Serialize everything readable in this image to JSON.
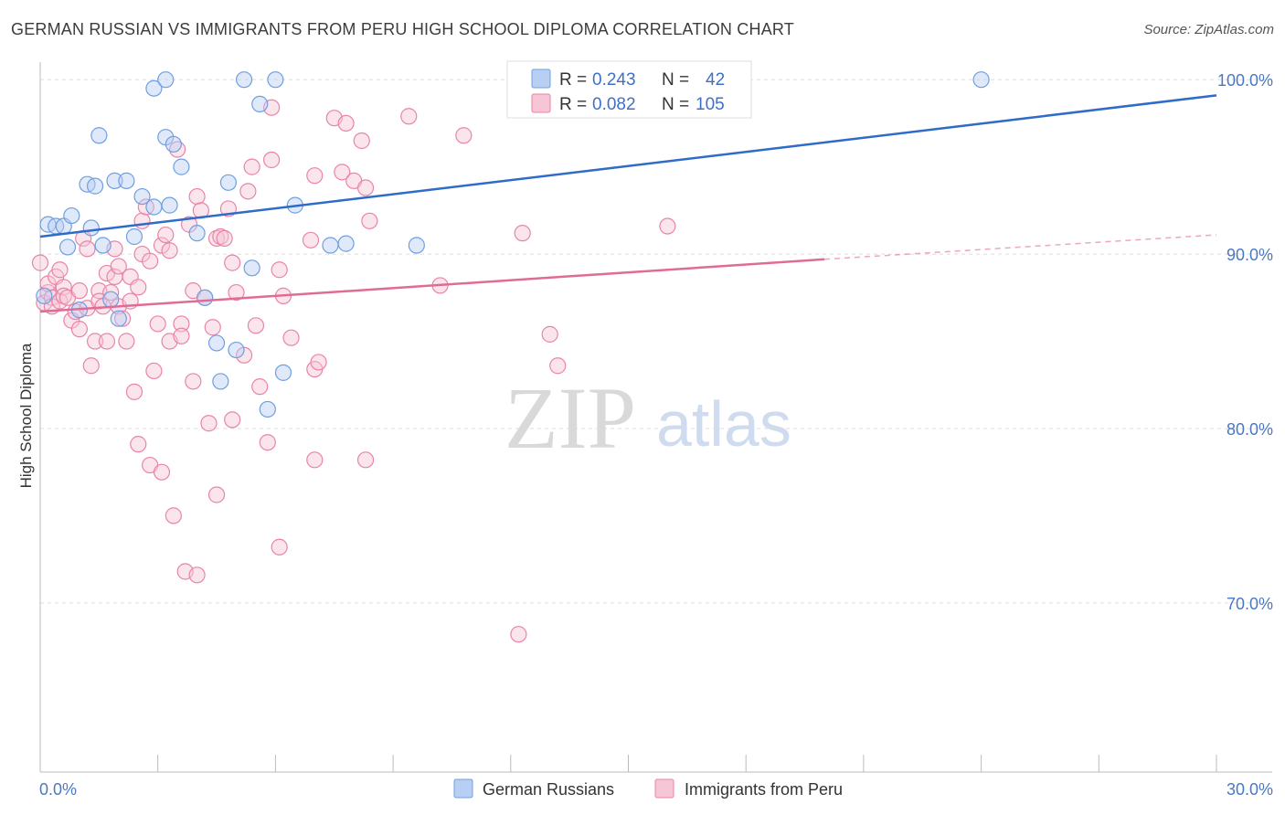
{
  "title": "GERMAN RUSSIAN VS IMMIGRANTS FROM PERU HIGH SCHOOL DIPLOMA CORRELATION CHART",
  "source": "Source: ZipAtlas.com",
  "watermark": {
    "zip": "ZIP",
    "atlas": "atlas"
  },
  "legend_top": {
    "rows": [
      {
        "r_label": "R =",
        "r_value": "0.243",
        "n_label": "N =",
        "n_value": "42"
      },
      {
        "r_label": "R =",
        "r_value": "0.082",
        "n_label": "N =",
        "n_value": "105"
      }
    ]
  },
  "legend_bottom": [
    "German Russians",
    "Immigrants from Peru"
  ],
  "chart_data": {
    "type": "scatter",
    "title": "GERMAN RUSSIAN VS IMMIGRANTS FROM PERU HIGH SCHOOL DIPLOMA CORRELATION CHART",
    "xlabel": "",
    "ylabel": "High School Diploma",
    "xlim": [
      0,
      30
    ],
    "ylim": [
      60.3,
      100.9
    ],
    "x_tick_labels": [
      {
        "value": 0,
        "label": "0.0%"
      },
      {
        "value": 30,
        "label": "30.0%"
      }
    ],
    "y_tick_labels": [
      {
        "value": 100,
        "label": "100.0%"
      },
      {
        "value": 90,
        "label": "90.0%"
      },
      {
        "value": 80,
        "label": "80.0%"
      },
      {
        "value": 70,
        "label": "70.0%"
      }
    ],
    "grid": true,
    "legend": "top-center",
    "colors": {
      "blue": "#6f9fe0",
      "blue_fill": "#b7cff3",
      "pink": "#ea84a6",
      "pink_fill": "#f6c6d6",
      "blue_line": "#2f6bc8",
      "pink_line": "#e06c96"
    },
    "series": [
      {
        "name": "German Russians",
        "color": "blue",
        "R": 0.243,
        "N": 42,
        "trend": {
          "x0": 0,
          "y0": 91.0,
          "x1": 30,
          "y1": 99.1
        },
        "points": [
          [
            0.2,
            91.7
          ],
          [
            0.4,
            91.6
          ],
          [
            0.6,
            91.6
          ],
          [
            0.7,
            90.4
          ],
          [
            0.8,
            92.2
          ],
          [
            1.0,
            86.8
          ],
          [
            1.2,
            94.0
          ],
          [
            1.3,
            91.5
          ],
          [
            1.4,
            93.9
          ],
          [
            1.5,
            96.8
          ],
          [
            1.6,
            90.5
          ],
          [
            1.8,
            87.4
          ],
          [
            1.9,
            94.2
          ],
          [
            2.0,
            86.3
          ],
          [
            2.2,
            94.2
          ],
          [
            2.4,
            91.0
          ],
          [
            2.6,
            93.3
          ],
          [
            2.9,
            92.7
          ],
          [
            2.9,
            99.5
          ],
          [
            3.2,
            100.0
          ],
          [
            3.2,
            96.7
          ],
          [
            3.4,
            96.3
          ],
          [
            3.6,
            95.0
          ],
          [
            4.0,
            91.2
          ],
          [
            4.2,
            87.5
          ],
          [
            4.5,
            84.9
          ],
          [
            4.6,
            82.7
          ],
          [
            4.8,
            94.1
          ],
          [
            5.0,
            84.5
          ],
          [
            5.2,
            100.0
          ],
          [
            5.4,
            89.2
          ],
          [
            5.6,
            98.6
          ],
          [
            5.8,
            81.1
          ],
          [
            6.0,
            100.0
          ],
          [
            6.2,
            83.2
          ],
          [
            6.5,
            92.8
          ],
          [
            7.4,
            90.5
          ],
          [
            7.8,
            90.6
          ],
          [
            9.6,
            90.5
          ],
          [
            24.0,
            100.0
          ],
          [
            0.1,
            87.6
          ],
          [
            3.3,
            92.8
          ]
        ]
      },
      {
        "name": "Immigrants from Peru",
        "color": "pink",
        "R": 0.082,
        "N": 105,
        "trend": {
          "x0": 0,
          "y0": 86.7,
          "x1": 20.0,
          "y1": 89.7,
          "dash_x1": 30,
          "dash_y1": 91.1
        },
        "points": [
          [
            0.0,
            89.5
          ],
          [
            0.1,
            87.2
          ],
          [
            0.2,
            87.8
          ],
          [
            0.2,
            88.3
          ],
          [
            0.3,
            87.5
          ],
          [
            0.3,
            87.0
          ],
          [
            0.4,
            88.7
          ],
          [
            0.5,
            87.3
          ],
          [
            0.5,
            89.1
          ],
          [
            0.6,
            88.1
          ],
          [
            0.6,
            87.6
          ],
          [
            0.7,
            87.5
          ],
          [
            0.8,
            86.2
          ],
          [
            0.9,
            86.7
          ],
          [
            1.0,
            87.9
          ],
          [
            1.0,
            85.7
          ],
          [
            1.1,
            90.9
          ],
          [
            1.2,
            86.9
          ],
          [
            1.2,
            90.3
          ],
          [
            1.3,
            83.6
          ],
          [
            1.4,
            85.0
          ],
          [
            1.5,
            87.9
          ],
          [
            1.5,
            87.3
          ],
          [
            1.6,
            87.0
          ],
          [
            1.7,
            88.9
          ],
          [
            1.7,
            85.0
          ],
          [
            1.8,
            87.8
          ],
          [
            1.9,
            88.7
          ],
          [
            1.9,
            90.3
          ],
          [
            2.0,
            87.0
          ],
          [
            2.0,
            89.3
          ],
          [
            2.1,
            86.3
          ],
          [
            2.2,
            85.0
          ],
          [
            2.3,
            88.7
          ],
          [
            2.4,
            82.1
          ],
          [
            2.5,
            88.1
          ],
          [
            2.5,
            79.1
          ],
          [
            2.6,
            91.9
          ],
          [
            2.6,
            90.0
          ],
          [
            2.7,
            92.7
          ],
          [
            2.8,
            77.9
          ],
          [
            2.8,
            89.6
          ],
          [
            2.9,
            83.3
          ],
          [
            3.0,
            86.0
          ],
          [
            3.1,
            77.5
          ],
          [
            3.1,
            90.5
          ],
          [
            3.2,
            91.1
          ],
          [
            3.3,
            85.0
          ],
          [
            3.3,
            90.2
          ],
          [
            3.4,
            75.0
          ],
          [
            3.5,
            96.0
          ],
          [
            3.6,
            86.0
          ],
          [
            3.6,
            85.3
          ],
          [
            3.7,
            71.8
          ],
          [
            3.8,
            91.7
          ],
          [
            3.9,
            87.9
          ],
          [
            3.9,
            82.7
          ],
          [
            4.0,
            93.3
          ],
          [
            4.0,
            71.6
          ],
          [
            4.1,
            92.5
          ],
          [
            4.2,
            87.5
          ],
          [
            4.3,
            80.3
          ],
          [
            4.4,
            85.8
          ],
          [
            4.5,
            90.9
          ],
          [
            4.5,
            76.2
          ],
          [
            4.6,
            91.0
          ],
          [
            4.7,
            90.9
          ],
          [
            4.8,
            92.6
          ],
          [
            4.9,
            80.5
          ],
          [
            4.9,
            89.5
          ],
          [
            5.0,
            87.8
          ],
          [
            5.2,
            84.2
          ],
          [
            5.3,
            93.6
          ],
          [
            5.4,
            95.0
          ],
          [
            5.5,
            85.9
          ],
          [
            5.6,
            82.4
          ],
          [
            5.8,
            79.2
          ],
          [
            5.9,
            95.4
          ],
          [
            5.9,
            98.4
          ],
          [
            6.1,
            89.1
          ],
          [
            6.1,
            73.2
          ],
          [
            6.2,
            87.6
          ],
          [
            6.4,
            85.2
          ],
          [
            6.9,
            90.8
          ],
          [
            7.0,
            94.5
          ],
          [
            7.0,
            83.4
          ],
          [
            7.0,
            78.2
          ],
          [
            7.1,
            83.8
          ],
          [
            7.5,
            97.8
          ],
          [
            7.7,
            94.7
          ],
          [
            7.8,
            97.5
          ],
          [
            8.0,
            94.2
          ],
          [
            8.2,
            96.5
          ],
          [
            8.3,
            78.2
          ],
          [
            8.3,
            93.8
          ],
          [
            8.4,
            91.9
          ],
          [
            9.4,
            97.9
          ],
          [
            10.2,
            88.2
          ],
          [
            10.8,
            96.8
          ],
          [
            12.2,
            68.2
          ],
          [
            12.3,
            91.2
          ],
          [
            13.0,
            85.4
          ],
          [
            13.2,
            83.6
          ],
          [
            16.0,
            91.6
          ],
          [
            2.3,
            87.3
          ]
        ]
      }
    ]
  }
}
